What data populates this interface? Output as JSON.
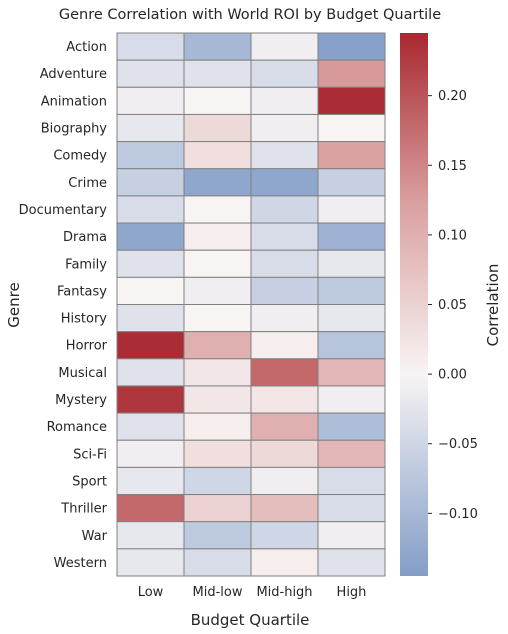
{
  "chart_data": {
    "type": "heatmap",
    "title": "Genre Correlation with World ROI by Budget Quartile",
    "xlabel": "Budget Quartile",
    "ylabel": "Genre",
    "colorbar_label": "Correlation",
    "x_categories": [
      "Low",
      "Mid-low",
      "Mid-high",
      "High"
    ],
    "y_categories": [
      "Action",
      "Adventure",
      "Animation",
      "Biography",
      "Comedy",
      "Crime",
      "Documentary",
      "Drama",
      "Family",
      "Fantasy",
      "History",
      "Horror",
      "Musical",
      "Mystery",
      "Romance",
      "Sci-Fi",
      "Sport",
      "Thriller",
      "War",
      "Western"
    ],
    "values": [
      [
        -0.04,
        -0.1,
        -0.01,
        -0.14
      ],
      [
        -0.03,
        -0.03,
        -0.04,
        0.13
      ],
      [
        -0.01,
        0.0,
        -0.01,
        0.24
      ],
      [
        -0.02,
        0.04,
        -0.01,
        0.0
      ],
      [
        -0.07,
        0.03,
        -0.03,
        0.12
      ],
      [
        -0.06,
        -0.13,
        -0.13,
        -0.06
      ],
      [
        -0.04,
        0.0,
        -0.05,
        -0.01
      ],
      [
        -0.13,
        0.01,
        -0.04,
        -0.11
      ],
      [
        -0.03,
        0.0,
        -0.04,
        -0.02
      ],
      [
        0.0,
        -0.01,
        -0.06,
        -0.07
      ],
      [
        -0.03,
        0.0,
        -0.01,
        -0.02
      ],
      [
        0.24,
        0.1,
        0.01,
        -0.08
      ],
      [
        -0.03,
        0.02,
        0.18,
        0.09
      ],
      [
        0.23,
        0.02,
        0.02,
        -0.01
      ],
      [
        -0.03,
        0.01,
        0.1,
        -0.09
      ],
      [
        -0.01,
        0.03,
        0.04,
        0.09
      ],
      [
        -0.02,
        -0.05,
        -0.01,
        -0.04
      ],
      [
        0.18,
        0.05,
        0.08,
        -0.04
      ],
      [
        -0.02,
        -0.07,
        -0.05,
        -0.01
      ],
      [
        -0.02,
        -0.04,
        0.01,
        -0.03
      ]
    ],
    "colorbar_ticks": [
      -0.1,
      -0.05,
      0.0,
      0.05,
      0.1,
      0.15,
      0.2
    ],
    "vmin": -0.145,
    "vmax": 0.245,
    "colormap": "vlag",
    "cell_border_color": "#808080"
  }
}
